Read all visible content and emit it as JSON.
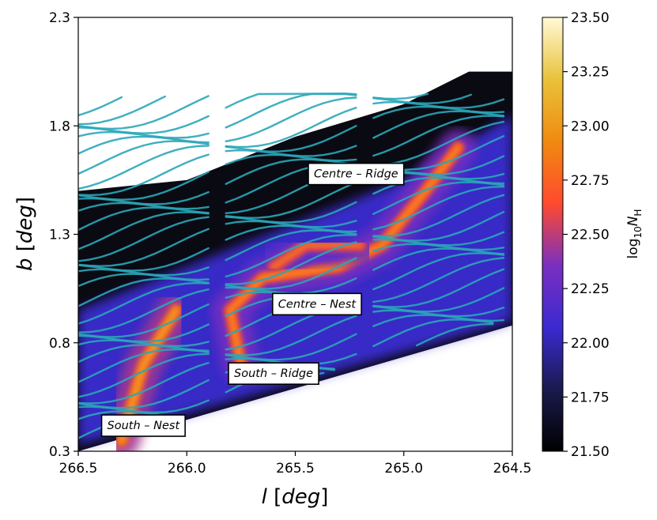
{
  "chart_data": {
    "type": "heatmap",
    "title": "",
    "xlabel": "l [deg]",
    "ylabel": "b [deg]",
    "x_axis": {
      "label_symbol": "l",
      "label_unit": "[deg]",
      "range": [
        266.5,
        264.5
      ],
      "reversed": true,
      "ticks": [
        266.5,
        266.0,
        265.5,
        265.0,
        264.5
      ],
      "tick_labels": [
        "266.5",
        "266.0",
        "265.5",
        "265.0",
        "264.5"
      ]
    },
    "y_axis": {
      "label_symbol": "b",
      "label_unit": "[deg]",
      "range": [
        0.3,
        2.3
      ],
      "ticks": [
        0.3,
        0.8,
        1.3,
        1.8,
        2.3
      ],
      "tick_labels": [
        "0.3",
        "0.8",
        "1.3",
        "1.8",
        "2.3"
      ]
    },
    "colorbar": {
      "label": "log10NH",
      "label_parts": {
        "base": "log",
        "base_sub": "10",
        "var": "N",
        "var_sub": "H"
      },
      "range": [
        21.5,
        23.5
      ],
      "ticks": [
        21.5,
        21.75,
        22.0,
        22.25,
        22.5,
        22.75,
        23.0,
        23.25,
        23.5
      ],
      "tick_labels": [
        "21.50",
        "21.75",
        "22.00",
        "22.25",
        "22.50",
        "22.75",
        "23.00",
        "23.25",
        "23.50"
      ],
      "colormap": "CMRmap",
      "stops": [
        "#000000",
        "#1a1a4d",
        "#3b2ad1",
        "#7a2fc0",
        "#ff4a2e",
        "#f08a10",
        "#e9c23a",
        "#fff9d6"
      ]
    },
    "map_coverage": {
      "description_free": true,
      "lower_edge": [
        [
          266.5,
          0.3
        ],
        [
          264.5,
          0.88
        ]
      ],
      "upper_edge": [
        [
          266.5,
          1.5
        ],
        [
          266.0,
          1.55
        ],
        [
          265.5,
          1.75
        ],
        [
          265.0,
          1.9
        ],
        [
          264.7,
          2.05
        ],
        [
          264.5,
          2.05
        ]
      ]
    },
    "ridges": [
      {
        "points": [
          [
            266.3,
            0.35
          ],
          [
            266.2,
            0.7
          ],
          [
            266.05,
            0.95
          ]
        ],
        "peak": 23.0
      },
      {
        "points": [
          [
            265.75,
            0.7
          ],
          [
            265.8,
            0.95
          ],
          [
            265.65,
            1.1
          ],
          [
            265.3,
            1.15
          ],
          [
            265.1,
            1.25
          ],
          [
            264.9,
            1.5
          ],
          [
            264.75,
            1.7
          ]
        ],
        "peak": 22.9
      },
      {
        "points": [
          [
            265.6,
            1.15
          ],
          [
            265.45,
            1.25
          ],
          [
            265.2,
            1.25
          ]
        ],
        "peak": 22.8
      }
    ],
    "field_color": "#2aa6b8",
    "annotations": [
      {
        "text": "Centre – Ridge",
        "l": 265.22,
        "b": 1.58
      },
      {
        "text": "Centre – Nest",
        "l": 265.4,
        "b": 0.98
      },
      {
        "text": "South – Ridge",
        "l": 265.6,
        "b": 0.66
      },
      {
        "text": "South – Nest",
        "l": 266.2,
        "b": 0.42
      }
    ]
  }
}
